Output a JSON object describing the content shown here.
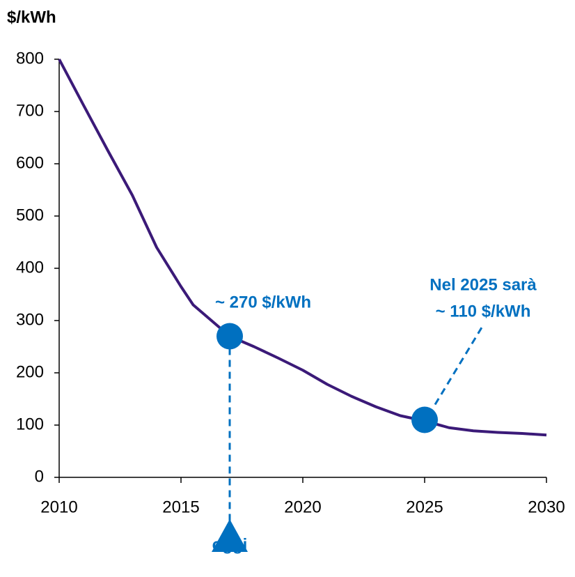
{
  "chart_data": {
    "type": "line",
    "y_label": "$/kWh",
    "x": [
      2010,
      2011,
      2012,
      2013,
      2014,
      2015,
      2015.5,
      2016,
      2017,
      2018,
      2019,
      2020,
      2021,
      2022,
      2023,
      2024,
      2025,
      2026,
      2027,
      2028,
      2029,
      2030
    ],
    "series": [
      {
        "color": "#3b1a78",
        "values": [
          800,
          712,
          625,
          540,
          440,
          365,
          330,
          310,
          270,
          250,
          228,
          205,
          178,
          155,
          135,
          118,
          108,
          95,
          89,
          86,
          84,
          81
        ]
      }
    ],
    "xlim": [
      2010,
      2030
    ],
    "xticks": [
      2010,
      2015,
      2020,
      2025,
      2030
    ],
    "ylim": [
      0,
      800
    ],
    "yticks": [
      0,
      100,
      200,
      300,
      400,
      500,
      600,
      700,
      800
    ],
    "highlight_color": "#0070c0",
    "highlights": [
      {
        "x": 2017,
        "y": 270,
        "label": [
          "~ 270 $/kWh"
        ]
      },
      {
        "x": 2025,
        "y": 110,
        "label": [
          "Nel 2025 sarà",
          "~ 110 $/kWh"
        ]
      }
    ],
    "today_label": "oggi"
  }
}
